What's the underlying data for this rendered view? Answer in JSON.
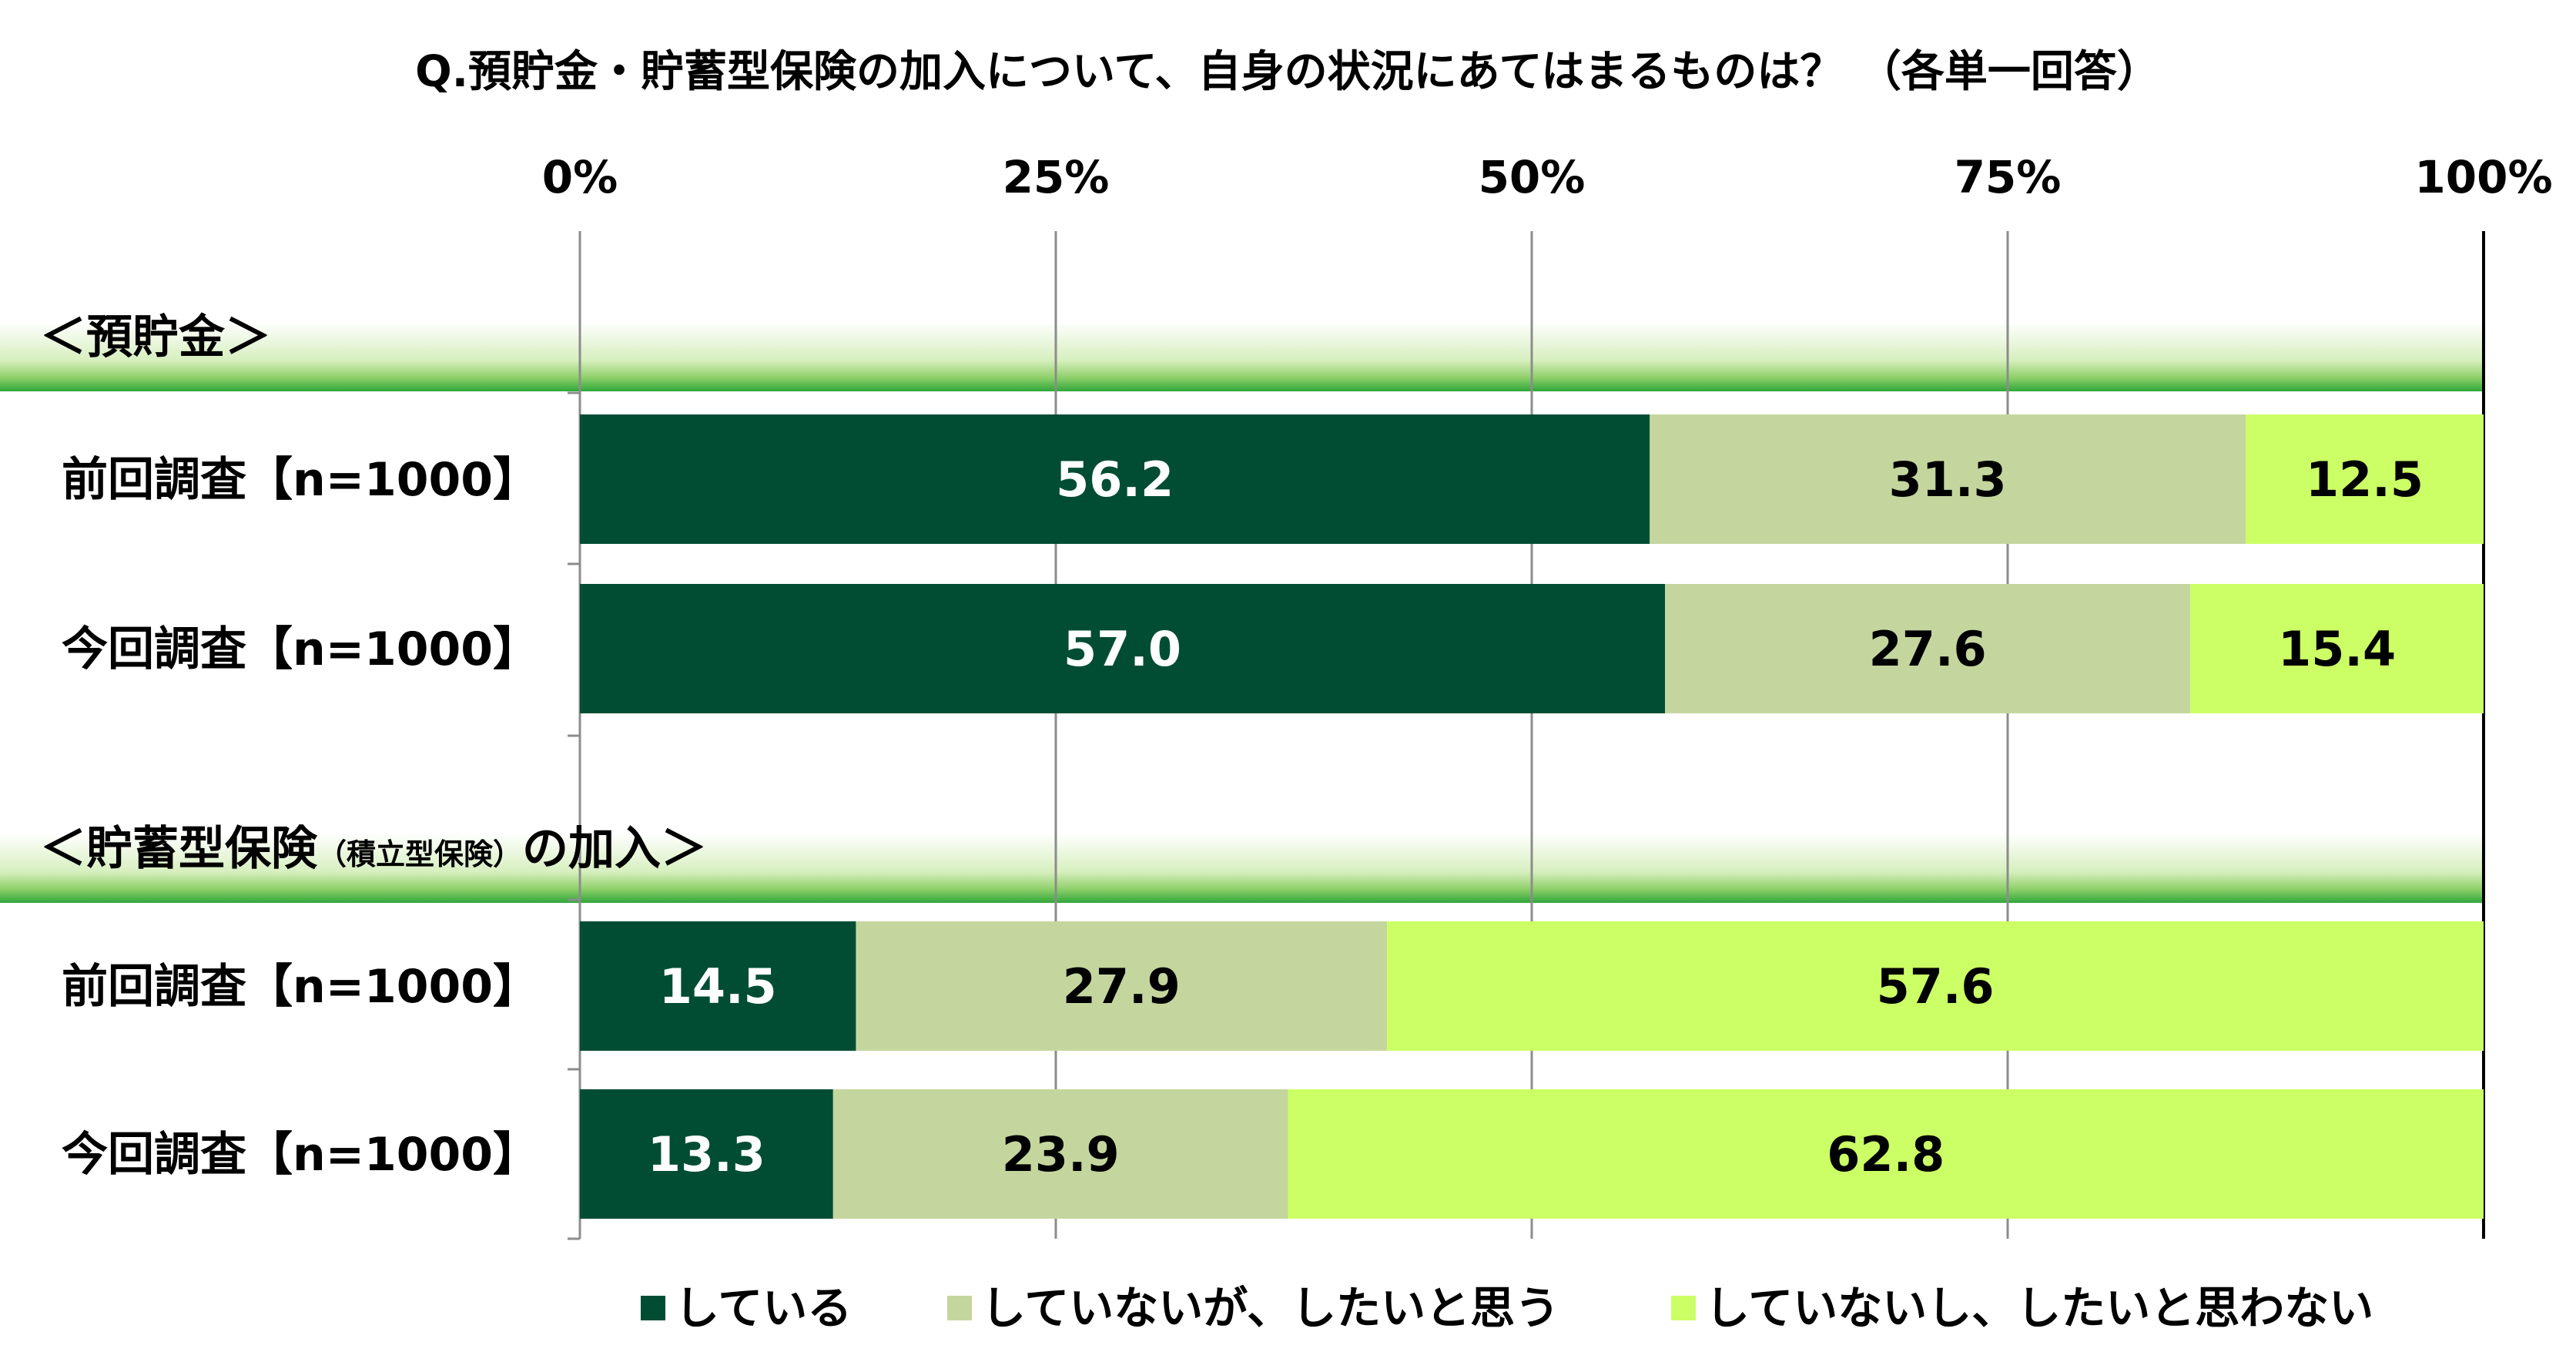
{
  "chart_data": {
    "type": "bar",
    "orientation": "horizontal-stacked-100",
    "title": "Q.預貯金・貯蓄型保険の加入について、自身の状況にあてはまるものは？ （各単一回答）",
    "x_ticks": [
      "0%",
      "25%",
      "50%",
      "75%",
      "100%"
    ],
    "xlim": [
      0,
      100
    ],
    "legend_position": "bottom",
    "series": [
      {
        "name": "している",
        "color": "#004d33"
      },
      {
        "name": "していないが、したいと思う",
        "color": "#c4d69e"
      },
      {
        "name": "していないし、したいと思わない",
        "color": "#ccff66"
      }
    ],
    "groups": [
      {
        "label": "＜預貯金＞",
        "label_sub": "",
        "label_tail": "",
        "rows": [
          {
            "category": "前回調査【n=1000】",
            "values": [
              56.2,
              31.3,
              12.5
            ]
          },
          {
            "category": "今回調査【n=1000】",
            "values": [
              57.0,
              27.6,
              15.4
            ]
          }
        ]
      },
      {
        "label": "＜貯蓄型保険",
        "label_sub": "（積立型保険）",
        "label_tail": "の加入＞",
        "rows": [
          {
            "category": "前回調査【n=1000】",
            "values": [
              14.5,
              27.9,
              57.6
            ]
          },
          {
            "category": "今回調査【n=1000】",
            "values": [
              13.3,
              23.9,
              62.8
            ]
          }
        ]
      }
    ]
  }
}
